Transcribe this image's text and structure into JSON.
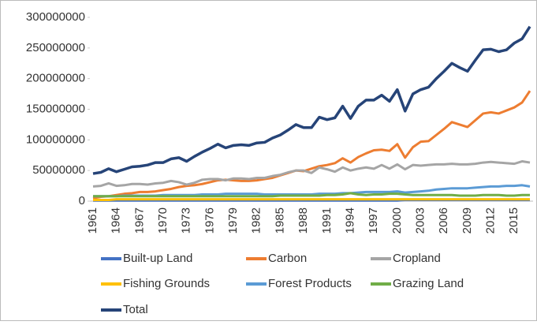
{
  "chart_data": {
    "type": "line",
    "categories": [
      "1961",
      null,
      null,
      "1964",
      null,
      null,
      "1967",
      null,
      null,
      "1970",
      null,
      null,
      "1973",
      null,
      null,
      "1976",
      null,
      null,
      "1979",
      null,
      null,
      "1982",
      null,
      null,
      "1985",
      null,
      null,
      "1988",
      null,
      null,
      "1991",
      null,
      null,
      "1994",
      null,
      null,
      "1997",
      null,
      null,
      "2000",
      null,
      null,
      "2003",
      null,
      null,
      "2006",
      null,
      null,
      "2009",
      null,
      null,
      "2012",
      null,
      null,
      "2015",
      null,
      null
    ],
    "ylim": [
      0,
      300000000
    ],
    "yticks": [
      0,
      50000000,
      100000000,
      150000000,
      200000000,
      250000000,
      300000000
    ],
    "legend": "bottom",
    "series": [
      {
        "name": "Built-up Land",
        "color": "#4472c4",
        "values": [
          1000000,
          1000000,
          1000000,
          1000000,
          1000000,
          1000000,
          1000000,
          1000000,
          1000000,
          1000000,
          1000000,
          1000000,
          1000000,
          1000000,
          1000000,
          1000000,
          1000000,
          1000000,
          1000000,
          1000000,
          1000000,
          1000000,
          1000000,
          1000000,
          1000000,
          1000000,
          1000000,
          1000000,
          1000000,
          1000000,
          1000000,
          1000000,
          1000000,
          1000000,
          1000000,
          1000000,
          1000000,
          1000000,
          1000000,
          1000000,
          2000000,
          2000000,
          2000000,
          2000000,
          2000000,
          2000000,
          2000000,
          2000000,
          2000000,
          2000000,
          2000000,
          2000000,
          2000000,
          2000000,
          2000000,
          2000000,
          2000000
        ]
      },
      {
        "name": "Carbon",
        "color": "#ed7d31",
        "values": [
          5000000,
          7000000,
          8000000,
          10000000,
          12000000,
          13000000,
          15000000,
          15000000,
          16000000,
          18000000,
          20000000,
          23000000,
          25000000,
          26000000,
          28000000,
          31000000,
          34000000,
          35000000,
          34000000,
          33000000,
          33000000,
          34000000,
          36000000,
          38000000,
          42000000,
          46000000,
          50000000,
          49000000,
          53000000,
          57000000,
          59000000,
          62000000,
          70000000,
          63000000,
          72000000,
          78000000,
          83000000,
          84000000,
          82000000,
          93000000,
          71000000,
          88000000,
          97000000,
          98000000,
          108000000,
          118000000,
          129000000,
          125000000,
          121000000,
          132000000,
          143000000,
          145000000,
          143000000,
          148000000,
          153000000,
          161000000,
          180000000
        ]
      },
      {
        "name": "Cropland",
        "color": "#a5a5a5",
        "values": [
          24000000,
          25000000,
          29000000,
          25000000,
          26000000,
          28000000,
          28000000,
          27000000,
          29000000,
          30000000,
          33000000,
          31000000,
          27000000,
          30000000,
          35000000,
          36000000,
          36000000,
          34000000,
          37000000,
          37000000,
          36000000,
          38000000,
          38000000,
          41000000,
          43000000,
          47000000,
          50000000,
          50000000,
          46000000,
          55000000,
          52000000,
          48000000,
          55000000,
          50000000,
          53000000,
          55000000,
          53000000,
          59000000,
          53000000,
          60000000,
          52000000,
          59000000,
          58000000,
          59000000,
          60000000,
          60000000,
          61000000,
          60000000,
          60000000,
          61000000,
          63000000,
          64000000,
          63000000,
          62000000,
          61000000,
          65000000,
          63000000
        ]
      },
      {
        "name": "Fishing Grounds",
        "color": "#ffc000",
        "values": [
          2000000,
          2000000,
          2000000,
          3000000,
          3000000,
          3000000,
          3000000,
          3000000,
          3000000,
          3000000,
          3000000,
          3000000,
          3000000,
          3000000,
          3000000,
          3000000,
          3000000,
          3000000,
          3000000,
          3000000,
          3000000,
          3000000,
          3000000,
          3000000,
          3000000,
          3000000,
          3000000,
          3000000,
          3000000,
          3000000,
          3000000,
          3000000,
          3000000,
          3000000,
          3000000,
          3000000,
          3000000,
          3000000,
          3000000,
          3000000,
          3000000,
          3000000,
          3000000,
          3000000,
          3000000,
          3000000,
          3000000,
          3000000,
          3000000,
          3000000,
          3000000,
          3000000,
          3000000,
          3000000,
          3000000,
          3000000,
          3000000
        ]
      },
      {
        "name": "Forest Products",
        "color": "#5b9bd5",
        "values": [
          8000000,
          8000000,
          8000000,
          8000000,
          9000000,
          9000000,
          9000000,
          9000000,
          9000000,
          10000000,
          10000000,
          10000000,
          10000000,
          10000000,
          11000000,
          11000000,
          11000000,
          12000000,
          12000000,
          12000000,
          12000000,
          12000000,
          11000000,
          11000000,
          11000000,
          11000000,
          11000000,
          11000000,
          11000000,
          12000000,
          12000000,
          12000000,
          13000000,
          13000000,
          14000000,
          15000000,
          15000000,
          15000000,
          15000000,
          16000000,
          14000000,
          15000000,
          16000000,
          17000000,
          19000000,
          20000000,
          21000000,
          21000000,
          21000000,
          22000000,
          23000000,
          24000000,
          24000000,
          25000000,
          25000000,
          26000000,
          24000000
        ]
      },
      {
        "name": "Grazing Land",
        "color": "#70ad47",
        "values": [
          8000000,
          8000000,
          8000000,
          8000000,
          8000000,
          8000000,
          8000000,
          8000000,
          8000000,
          8000000,
          8000000,
          8000000,
          8000000,
          8000000,
          8000000,
          8000000,
          8000000,
          8000000,
          8000000,
          8000000,
          8000000,
          8000000,
          8000000,
          8000000,
          9000000,
          9000000,
          9000000,
          9000000,
          9000000,
          9000000,
          10000000,
          10000000,
          11000000,
          13000000,
          11000000,
          10000000,
          11000000,
          11000000,
          12000000,
          12000000,
          11000000,
          10000000,
          10000000,
          10000000,
          10000000,
          10000000,
          10000000,
          9000000,
          9000000,
          9000000,
          10000000,
          10000000,
          10000000,
          9000000,
          9000000,
          10000000,
          10000000
        ]
      },
      {
        "name": "Total",
        "color": "#264478",
        "values": [
          45000000,
          47000000,
          53000000,
          48000000,
          52000000,
          56000000,
          57000000,
          59000000,
          63000000,
          63000000,
          69000000,
          71000000,
          65000000,
          73000000,
          80000000,
          86000000,
          93000000,
          87000000,
          91000000,
          92000000,
          91000000,
          95000000,
          96000000,
          103000000,
          108000000,
          116000000,
          125000000,
          120000000,
          120000000,
          137000000,
          133000000,
          136000000,
          155000000,
          135000000,
          155000000,
          165000000,
          165000000,
          173000000,
          163000000,
          182000000,
          147000000,
          175000000,
          182000000,
          186000000,
          200000000,
          212000000,
          225000000,
          218000000,
          212000000,
          230000000,
          247000000,
          248000000,
          244000000,
          247000000,
          258000000,
          265000000,
          285000000
        ]
      }
    ]
  }
}
